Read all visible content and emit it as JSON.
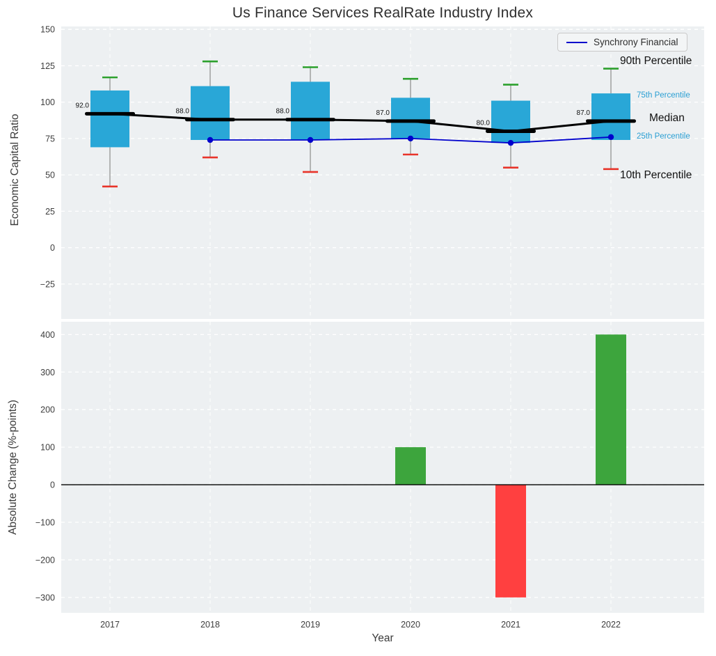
{
  "chart_data": [
    {
      "type": "boxplot",
      "title": "Us Finance Services RealRate Industry Index",
      "ylabel": "Economic Capital Ratio",
      "ylim": [
        -49,
        152
      ],
      "yticks": [
        150,
        125,
        100,
        75,
        50,
        25,
        0,
        -25
      ],
      "grid": "horizontal-dashed-white",
      "categories": [
        "2017",
        "2018",
        "2019",
        "2020",
        "2021",
        "2022"
      ],
      "boxes": [
        {
          "year": "2017",
          "p10": 42,
          "p25": 69,
          "median": 92,
          "p75": 108,
          "p90": 117,
          "label": "92.0"
        },
        {
          "year": "2018",
          "p10": 62,
          "p25": 74,
          "median": 88,
          "p75": 111,
          "p90": 128,
          "label": "88.0"
        },
        {
          "year": "2019",
          "p10": 52,
          "p25": 74,
          "median": 88,
          "p75": 114,
          "p90": 124,
          "label": "88.0"
        },
        {
          "year": "2020",
          "p10": 64,
          "p25": 75,
          "median": 87,
          "p75": 103,
          "p90": 116,
          "label": "87.0"
        },
        {
          "year": "2021",
          "p10": 55,
          "p25": 72,
          "median": 80,
          "p75": 101,
          "p90": 112,
          "label": "80.0"
        },
        {
          "year": "2022",
          "p10": 54,
          "p25": 74,
          "median": 87,
          "p75": 106,
          "p90": 123,
          "label": "87.0"
        }
      ],
      "series": [
        {
          "name": "Synchrony Financial",
          "x": [
            "2018",
            "2019",
            "2020",
            "2021",
            "2022"
          ],
          "values": [
            74,
            74,
            75,
            72,
            76
          ],
          "color": "#0000cc"
        }
      ],
      "legend": {
        "position": "upper right",
        "entries": [
          {
            "label": "Synchrony Financial",
            "color": "#0000cc"
          }
        ]
      },
      "annotations": [
        {
          "text": "90th Percentile",
          "color": "#111111",
          "size": "large"
        },
        {
          "text": "75th Percentile",
          "color": "#2a9fd3",
          "size": "small"
        },
        {
          "text": "Median",
          "color": "#111111",
          "size": "large"
        },
        {
          "text": "25th Percentile",
          "color": "#2a9fd3",
          "size": "small"
        },
        {
          "text": "10th Percentile",
          "color": "#111111",
          "size": "large"
        }
      ],
      "colors": {
        "box_fill": "#29a7d7",
        "whisker": "#9a9a9a",
        "cap_top": "#2ca02c",
        "cap_bottom": "#e8342a",
        "median": "#000000",
        "plot_bg": "#edf0f2",
        "grid": "#ffffff"
      }
    },
    {
      "type": "bar",
      "ylabel": "Absolute Change (%-points)",
      "xlabel": "Year",
      "ylim": [
        -341,
        434
      ],
      "yticks": [
        400,
        300,
        200,
        100,
        0,
        -100,
        -200,
        -300
      ],
      "grid": "horizontal-dashed-white",
      "categories": [
        "2017",
        "2018",
        "2019",
        "2020",
        "2021",
        "2022"
      ],
      "values": [
        0,
        0,
        0,
        100,
        -300,
        400
      ],
      "colors": {
        "positive": "#3da53d",
        "negative": "#ff4040",
        "zero_line": "#000000",
        "plot_bg": "#edf0f2",
        "grid": "#ffffff"
      }
    }
  ]
}
